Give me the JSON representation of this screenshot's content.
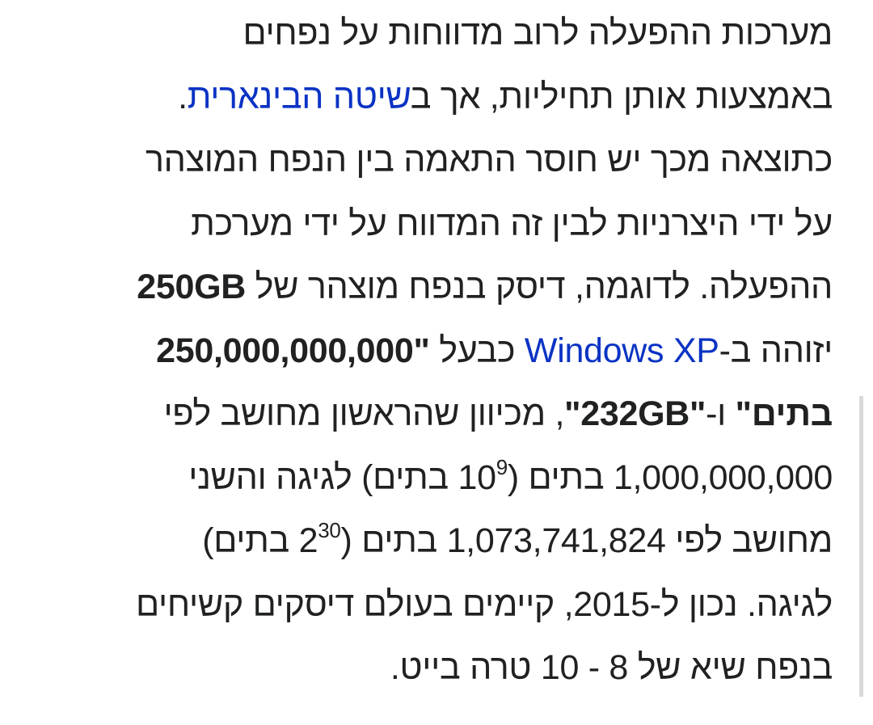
{
  "article": {
    "l1": "מערכות ההפעלה לרוב מדווחות על נפחים",
    "l2a": "באמצעות אותן תחיליות, אך ב",
    "l2_link": "שיטה הבינארית",
    "l2b": ".",
    "l3": "כתוצאה מכך יש חוסר התאמה בין הנפח המוצהר",
    "l4": "על ידי היצרניות לבין זה המדווח על ידי מערכת",
    "l5a": "ההפעלה. לדוגמה, דיסק בנפח מוצהר של ",
    "l5_bold": "250GB",
    "l6a": "יזוהה ב-",
    "l6_link": "Windows XP",
    "l6b": " כבעל ",
    "l6_bold": "\"250,000,000,000",
    "l7_bold1": "בתים\"",
    "l7a": " ו-",
    "l7_bold2": "\"232GB\"",
    "l7b": ", מכיוון שהראשון מחושב לפי",
    "l8a": "1,000,000,000 בתים (10",
    "l8_sup": "9",
    "l8b": " בתים) לגיגה והשני",
    "l9a": "מחושב לפי 1,073,741,824 בתים (2",
    "l9_sup": "30",
    "l9b": " בתים)",
    "l10": "לגיגה. נכון ל-2015, קיימים בעולם דיסקים קשיחים",
    "l11": "בנפח שיא של 8 - 10 טרה בייט."
  },
  "colors": {
    "link": "#0b33c4",
    "text": "#202122"
  }
}
